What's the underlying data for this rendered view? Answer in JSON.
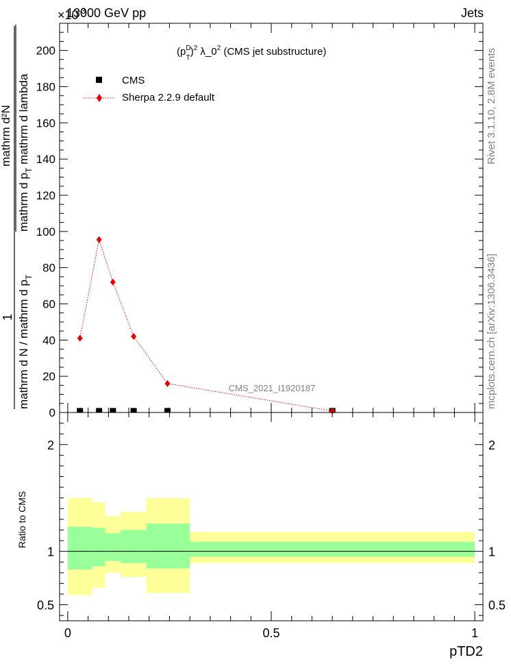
{
  "header": {
    "left": "13000 GeV pp",
    "right": "Jets",
    "exponent_base": "×10",
    "exponent_power": "-3"
  },
  "plot_title": {
    "p": "(p",
    "sup_d": "D",
    "sub_t": "T",
    "rest": ")",
    "sq": "2",
    "lambda": " λ_0",
    "sq2": "2",
    "tail": " (CMS jet substructure)"
  },
  "side_labels": {
    "rivet": "Rivet 3.1.10, 2.8M events",
    "mcplots": "mcplots.cern.ch [arXiv:1306.3436]"
  },
  "watermark": "CMS_2021_I1920187",
  "ylabel": {
    "one": "1",
    "den_left": "mathrm d N / mathrm d p",
    "den_sub": "T",
    "num": "mathrm d²N",
    "num_den_a": "mathrm d p",
    "num_den_sub": "T",
    "num_den_b": " mathrm d lambda"
  },
  "ratio_ylabel": "Ratio to CMS",
  "xlabel": "pTD2",
  "legend": [
    {
      "label": "CMS",
      "color": "#000000"
    },
    {
      "label": "Sherpa 2.2.9 default",
      "color": "#e00000"
    }
  ],
  "chart_data": [
    {
      "type": "line",
      "panel": "main",
      "xlim": [
        -0.02,
        1.02
      ],
      "ylim": [
        0,
        215
      ],
      "yticks_major": [
        0,
        20,
        40,
        60,
        80,
        100,
        120,
        140,
        160,
        180,
        200
      ],
      "xticks_major": [
        0,
        0.5,
        1
      ],
      "series": [
        {
          "name": "CMS",
          "style": "square",
          "x": [
            0.03,
            0.077,
            0.111,
            0.162,
            0.245,
            0.65
          ],
          "y": [
            0.2,
            0.2,
            0.2,
            0.2,
            0.2,
            0.2
          ]
        },
        {
          "name": "Sherpa 2.2.9 default",
          "style": "diamond-dotted",
          "x": [
            0.03,
            0.077,
            0.111,
            0.162,
            0.245,
            0.65
          ],
          "y": [
            41,
            95.5,
            72,
            42,
            16,
            0.8
          ]
        }
      ]
    },
    {
      "type": "area",
      "panel": "ratio",
      "xlim": [
        -0.02,
        1.02
      ],
      "ylim": [
        0.35,
        2.3
      ],
      "yticks_major": [
        0.5,
        1,
        2
      ],
      "ytick_labels": [
        "0.5",
        "1",
        "2"
      ],
      "xtick_labels": [
        "0",
        "0.5",
        "1"
      ],
      "bins": [
        {
          "x0": 0.0,
          "x1": 0.06,
          "inner": [
            0.83,
            1.23
          ],
          "outer": [
            0.59,
            1.5
          ]
        },
        {
          "x0": 0.06,
          "x1": 0.092,
          "inner": [
            0.86,
            1.22
          ],
          "outer": [
            0.66,
            1.46
          ]
        },
        {
          "x0": 0.092,
          "x1": 0.13,
          "inner": [
            0.91,
            1.17
          ],
          "outer": [
            0.8,
            1.33
          ]
        },
        {
          "x0": 0.13,
          "x1": 0.193,
          "inner": [
            0.89,
            1.2
          ],
          "outer": [
            0.76,
            1.37
          ]
        },
        {
          "x0": 0.193,
          "x1": 0.3,
          "inner": [
            0.84,
            1.26
          ],
          "outer": [
            0.61,
            1.5
          ]
        },
        {
          "x0": 0.3,
          "x1": 1.0,
          "inner": [
            0.95,
            1.09
          ],
          "outer": [
            0.89,
            1.18
          ]
        }
      ],
      "series": [
        {
          "name": "Sherpa 2.2.9 default",
          "x": [
            0.0,
            1.0
          ],
          "y": [
            1,
            1
          ]
        }
      ]
    }
  ]
}
